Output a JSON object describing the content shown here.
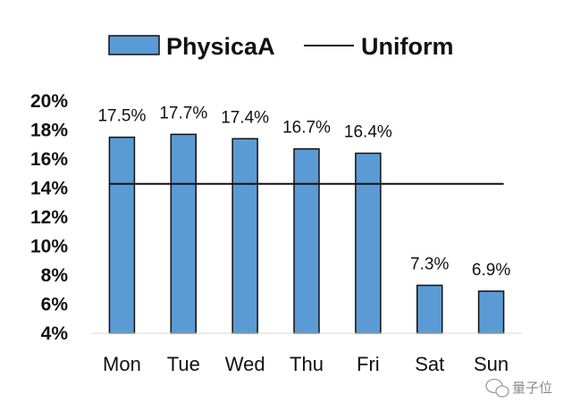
{
  "chart_data": {
    "type": "bar",
    "categories": [
      "Mon",
      "Tue",
      "Wed",
      "Thu",
      "Fri",
      "Sat",
      "Sun"
    ],
    "series": [
      {
        "name": "PhysicaA",
        "type": "bar",
        "values": [
          17.5,
          17.7,
          17.4,
          16.7,
          16.4,
          7.3,
          6.9
        ]
      },
      {
        "name": "Uniform",
        "type": "line",
        "values": [
          14.29,
          14.29,
          14.29,
          14.29,
          14.29,
          14.29,
          14.29
        ]
      }
    ],
    "data_labels": [
      "17.5%",
      "17.7%",
      "17.4%",
      "16.7%",
      "16.4%",
      "7.3%",
      "6.9%"
    ],
    "ylim": [
      4,
      20
    ],
    "yticks": [
      4,
      6,
      8,
      10,
      12,
      14,
      16,
      18,
      20
    ],
    "ytick_labels": [
      "4%",
      "6%",
      "8%",
      "10%",
      "12%",
      "14%",
      "16%",
      "18%",
      "20%"
    ],
    "legend_position": "top",
    "grid": false
  },
  "colors": {
    "bar_fill": "#5b9bd5",
    "bar_stroke": "#111111",
    "line": "#111111"
  },
  "watermark": {
    "icon": "wechat-icon",
    "text": "量子位"
  }
}
